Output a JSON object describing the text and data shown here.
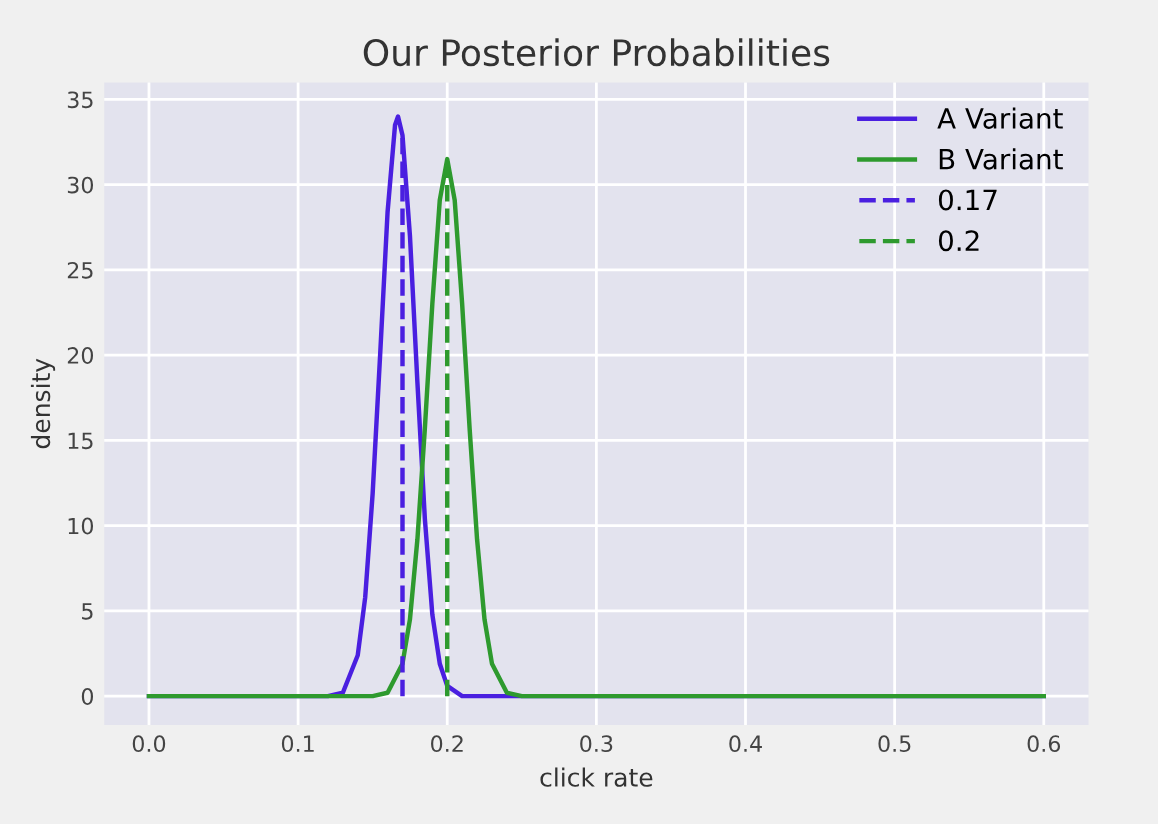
{
  "chart_data": {
    "type": "line",
    "title": "Our Posterior Probabilities",
    "xlabel": "click rate",
    "ylabel": "density",
    "series": [
      {
        "name": "A Variant",
        "color": "#4a1fe0",
        "x": [
          0.0,
          0.12,
          0.13,
          0.14,
          0.145,
          0.15,
          0.155,
          0.16,
          0.165,
          0.167,
          0.17,
          0.175,
          0.18,
          0.185,
          0.19,
          0.195,
          0.2,
          0.21,
          0.6
        ],
        "values": [
          0,
          0,
          0.2,
          2.4,
          5.8,
          11.9,
          20,
          28.4,
          33.5,
          34,
          32.9,
          27,
          18.4,
          10.4,
          4.8,
          1.9,
          0.6,
          0,
          0
        ]
      },
      {
        "name": "B Variant",
        "color": "#2e9a2e",
        "x": [
          0.0,
          0.15,
          0.16,
          0.17,
          0.175,
          0.18,
          0.185,
          0.19,
          0.195,
          0.2,
          0.205,
          0.21,
          0.215,
          0.22,
          0.225,
          0.23,
          0.24,
          0.25,
          0.6
        ],
        "values": [
          0,
          0,
          0.2,
          1.9,
          4.5,
          9.2,
          15.7,
          23,
          29.1,
          31.5,
          29.1,
          23,
          15.7,
          9.2,
          4.5,
          1.9,
          0.2,
          0,
          0
        ]
      },
      {
        "name": "0.17",
        "color": "#4a1fe0",
        "line_style": "dashed",
        "x": [
          0.17,
          0.17
        ],
        "values": [
          0,
          33
        ]
      },
      {
        "name": "0.2",
        "color": "#2e9a2e",
        "line_style": "dashed",
        "x": [
          0.2,
          0.2
        ],
        "values": [
          0,
          31
        ]
      }
    ],
    "xlim": [
      -0.03,
      0.63
    ],
    "xticks": [
      {
        "value": 0.0,
        "label": "0.0"
      },
      0.1,
      0.2,
      0.3,
      0.4,
      0.5,
      0.6
    ],
    "ylim": [
      -1.7,
      36
    ],
    "yticks": [
      0,
      5,
      10,
      15,
      20,
      25,
      30,
      35
    ],
    "grid": true,
    "legend": "top right",
    "line_style": "solid",
    "marker": "none"
  }
}
